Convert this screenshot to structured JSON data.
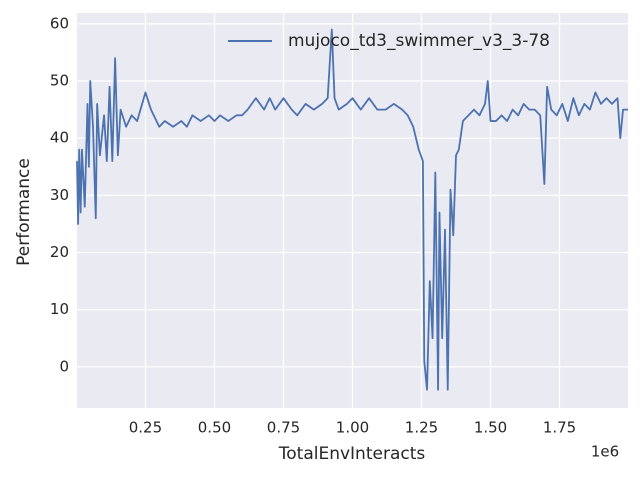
{
  "chart_data": {
    "type": "line",
    "xlabel": "TotalEnvInteracts",
    "ylabel": "Performance",
    "x_offset_label": "1e6",
    "x": [
      0.002,
      0.006,
      0.01,
      0.015,
      0.02,
      0.03,
      0.04,
      0.045,
      0.05,
      0.06,
      0.07,
      0.075,
      0.085,
      0.1,
      0.11,
      0.12,
      0.13,
      0.14,
      0.15,
      0.16,
      0.18,
      0.2,
      0.22,
      0.25,
      0.27,
      0.3,
      0.32,
      0.35,
      0.38,
      0.4,
      0.42,
      0.45,
      0.48,
      0.5,
      0.52,
      0.55,
      0.58,
      0.6,
      0.62,
      0.65,
      0.68,
      0.7,
      0.72,
      0.75,
      0.78,
      0.8,
      0.83,
      0.86,
      0.89,
      0.91,
      0.925,
      0.935,
      0.95,
      0.98,
      1.0,
      1.03,
      1.06,
      1.09,
      1.12,
      1.15,
      1.18,
      1.2,
      1.22,
      1.24,
      1.255,
      1.26,
      1.27,
      1.28,
      1.29,
      1.3,
      1.31,
      1.315,
      1.325,
      1.335,
      1.345,
      1.355,
      1.365,
      1.375,
      1.385,
      1.4,
      1.42,
      1.44,
      1.46,
      1.48,
      1.49,
      1.5,
      1.52,
      1.54,
      1.56,
      1.58,
      1.6,
      1.62,
      1.64,
      1.66,
      1.68,
      1.695,
      1.705,
      1.72,
      1.74,
      1.76,
      1.78,
      1.8,
      1.82,
      1.84,
      1.86,
      1.88,
      1.9,
      1.92,
      1.94,
      1.96,
      1.97,
      1.98,
      1.998
    ],
    "series": [
      {
        "name": "mujoco_td3_swimmer_v3_3-78",
        "color": "#4c72b0",
        "values": [
          36,
          25,
          38,
          27,
          38,
          28,
          46,
          35,
          50,
          42,
          26,
          46,
          37,
          44,
          36,
          49,
          36,
          54,
          37,
          45,
          42,
          44,
          43,
          48,
          45,
          42,
          43,
          42,
          43,
          42,
          44,
          43,
          44,
          43,
          44,
          43,
          44,
          44,
          45,
          47,
          45,
          47,
          45,
          47,
          45,
          44,
          46,
          45,
          46,
          47,
          59,
          47,
          45,
          46,
          47,
          45,
          47,
          45,
          45,
          46,
          45,
          44,
          42,
          38,
          36,
          1,
          -4,
          15,
          5,
          34,
          -4,
          27,
          5,
          24,
          -4,
          31,
          23,
          37,
          38,
          43,
          44,
          45,
          44,
          46,
          50,
          43,
          43,
          44,
          43,
          45,
          44,
          46,
          45,
          45,
          44,
          32,
          49,
          45,
          44,
          46,
          43,
          47,
          44,
          46,
          45,
          48,
          46,
          47,
          46,
          47,
          40,
          45,
          45
        ]
      }
    ],
    "xlim": [
      0.002,
      1.998
    ],
    "ylim": [
      -7.2,
      61.9
    ],
    "xticks": [
      0.25,
      {
        "value": 0.5,
        "label": "0.50"
      },
      0.75,
      {
        "value": 1,
        "label": "1.00"
      },
      1.25,
      {
        "value": 1.5,
        "label": "1.50"
      },
      1.75
    ],
    "yticks": [
      0,
      10,
      20,
      30,
      40,
      50,
      60
    ],
    "grid": true,
    "legend": "upper right"
  }
}
